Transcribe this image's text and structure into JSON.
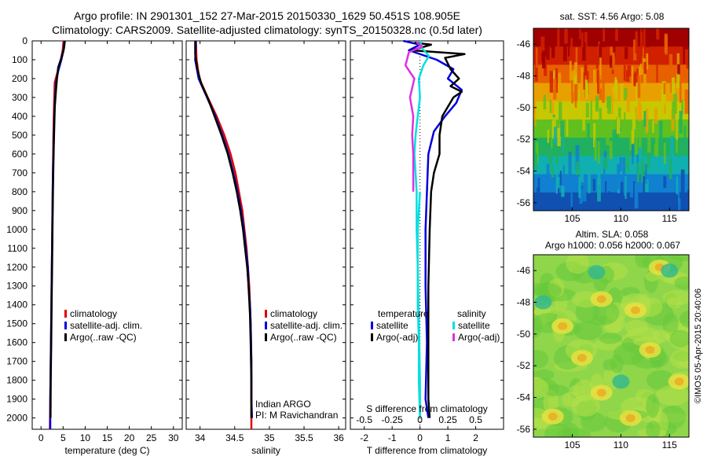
{
  "title_line1": "Argo profile: IN 2901301_152 27-Mar-2015 20150330_1629 50.451S 108.905E",
  "title_line2": "Climatology: CARS2009. Satellite-adjusted climatology: synTS_20150328.nc (0.5d later)",
  "colors": {
    "climatology": "#e00000",
    "satellite": "#0000e0",
    "argo": "#000000",
    "sat_s": "#00e0e0",
    "argo_s": "#e030e0"
  },
  "chart_data": [
    {
      "type": "line",
      "xlabel": "temperature (deg C)",
      "ylabel": "",
      "xlim": [
        -2,
        32
      ],
      "ylim": [
        2060,
        0
      ],
      "xticks": [
        0,
        5,
        10,
        15,
        20,
        25,
        30
      ],
      "yticks": [
        0,
        100,
        200,
        300,
        400,
        500,
        600,
        700,
        800,
        900,
        1000,
        1100,
        1200,
        1300,
        1400,
        1500,
        1600,
        1700,
        1800,
        1900,
        2000
      ],
      "legend": [
        "climatology",
        "satellite-adj. clim.",
        "Argo(..raw -QC)"
      ],
      "series": [
        {
          "name": "climatology",
          "color": "climatology",
          "points": [
            [
              5.1,
              0
            ],
            [
              4.9,
              50
            ],
            [
              4.5,
              100
            ],
            [
              3.8,
              160
            ],
            [
              3.1,
              220
            ],
            [
              3.0,
              300
            ],
            [
              2.9,
              400
            ],
            [
              2.8,
              500
            ],
            [
              2.75,
              600
            ],
            [
              2.7,
              700
            ],
            [
              2.6,
              900
            ],
            [
              2.5,
              1100
            ],
            [
              2.4,
              1300
            ],
            [
              2.3,
              1500
            ],
            [
              2.2,
              1700
            ],
            [
              2.1,
              1900
            ],
            [
              2.0,
              2060
            ]
          ]
        },
        {
          "name": "satellite-adj. clim.",
          "color": "satellite",
          "points": [
            [
              5.3,
              0
            ],
            [
              5.1,
              50
            ],
            [
              4.6,
              100
            ],
            [
              3.9,
              160
            ],
            [
              3.4,
              220
            ],
            [
              3.2,
              300
            ],
            [
              3.0,
              400
            ],
            [
              2.9,
              500
            ],
            [
              2.8,
              600
            ],
            [
              2.7,
              700
            ],
            [
              2.6,
              900
            ],
            [
              2.5,
              1100
            ],
            [
              2.4,
              1300
            ],
            [
              2.3,
              1500
            ],
            [
              2.2,
              1700
            ],
            [
              2.1,
              1900
            ],
            [
              2.1,
              2060
            ]
          ]
        },
        {
          "name": "Argo(..raw -QC)",
          "color": "argo",
          "points": [
            [
              5.4,
              0
            ],
            [
              5.2,
              40
            ],
            [
              4.6,
              90
            ],
            [
              3.9,
              140
            ],
            [
              3.6,
              200
            ],
            [
              3.4,
              260
            ],
            [
              3.1,
              350
            ],
            [
              3.0,
              450
            ],
            [
              2.9,
              550
            ],
            [
              2.8,
              650
            ],
            [
              2.7,
              800
            ],
            [
              2.6,
              1000
            ],
            [
              2.5,
              1200
            ],
            [
              2.4,
              1400
            ],
            [
              2.3,
              1600
            ],
            [
              2.2,
              1800
            ],
            [
              2.15,
              2000
            ]
          ]
        }
      ]
    },
    {
      "type": "line",
      "xlabel": "salinity",
      "ylabel": "",
      "xlim": [
        33.8,
        36.1
      ],
      "ylim": [
        2060,
        0
      ],
      "xticks": [
        34,
        34.5,
        35,
        35.5,
        36
      ],
      "xticklabels": [
        "34",
        "34.5",
        "35",
        "35.5",
        "36"
      ],
      "legend": [
        "climatology",
        "satellite-adj. clim.",
        "Argo(..raw -QC)"
      ],
      "annotation": [
        "Indian ARGO",
        "PI: M Ravichandran"
      ],
      "series": [
        {
          "name": "climatology",
          "color": "climatology",
          "points": [
            [
              33.94,
              0
            ],
            [
              33.95,
              100
            ],
            [
              33.99,
              200
            ],
            [
              34.11,
              300
            ],
            [
              34.24,
              400
            ],
            [
              34.35,
              500
            ],
            [
              34.44,
              600
            ],
            [
              34.51,
              700
            ],
            [
              34.56,
              800
            ],
            [
              34.61,
              900
            ],
            [
              34.64,
              1000
            ],
            [
              34.67,
              1100
            ],
            [
              34.69,
              1200
            ],
            [
              34.71,
              1300
            ],
            [
              34.72,
              1400
            ],
            [
              34.73,
              1500
            ],
            [
              34.74,
              1700
            ],
            [
              34.74,
              1900
            ],
            [
              34.74,
              2060
            ]
          ]
        },
        {
          "name": "satellite-adj. clim.",
          "color": "satellite",
          "points": [
            [
              33.94,
              0
            ],
            [
              33.93,
              100
            ],
            [
              33.98,
              200
            ],
            [
              34.1,
              300
            ],
            [
              34.22,
              400
            ],
            [
              34.32,
              500
            ],
            [
              34.41,
              600
            ],
            [
              34.48,
              700
            ],
            [
              34.54,
              800
            ],
            [
              34.59,
              900
            ],
            [
              34.63,
              1000
            ],
            [
              34.66,
              1100
            ],
            [
              34.69,
              1200
            ],
            [
              34.7,
              1300
            ],
            [
              34.72,
              1400
            ],
            [
              34.73,
              1500
            ],
            [
              34.74,
              1700
            ],
            [
              34.74,
              1900
            ],
            [
              34.75,
              2000
            ]
          ]
        },
        {
          "name": "Argo(..raw -QC)",
          "color": "argo",
          "points": [
            [
              33.93,
              0
            ],
            [
              33.93,
              70
            ],
            [
              33.96,
              150
            ],
            [
              34.02,
              230
            ],
            [
              34.12,
              310
            ],
            [
              34.21,
              400
            ],
            [
              34.31,
              500
            ],
            [
              34.4,
              600
            ],
            [
              34.47,
              700
            ],
            [
              34.53,
              800
            ],
            [
              34.58,
              900
            ],
            [
              34.62,
              1000
            ],
            [
              34.65,
              1100
            ],
            [
              34.68,
              1200
            ],
            [
              34.7,
              1300
            ],
            [
              34.72,
              1450
            ],
            [
              34.73,
              1600
            ],
            [
              34.74,
              1800
            ],
            [
              34.74,
              2000
            ]
          ]
        }
      ]
    },
    {
      "type": "line",
      "xlabel": "T difference from climatology",
      "top_label": "S difference from climatology",
      "xlim": [
        -2.5,
        3
      ],
      "ylim": [
        2060,
        0
      ],
      "xticks": [
        -2,
        -1,
        0,
        1,
        2
      ],
      "top_ticks": [
        -0.5,
        -0.25,
        0,
        0.25,
        0.5
      ],
      "legend_temperature": {
        "title": "temperature",
        "items": [
          "satellite",
          "Argo(-adj)"
        ]
      },
      "legend_salinity": {
        "title": "salinity",
        "items": [
          "satellite",
          "Argo(-adj)"
        ]
      },
      "series": [
        {
          "name": "temperature satellite",
          "color": "satellite",
          "points": [
            [
              -0.6,
              0
            ],
            [
              0,
              20
            ],
            [
              -0.4,
              50
            ],
            [
              0.6,
              100
            ],
            [
              1.2,
              150
            ],
            [
              1.0,
              200
            ],
            [
              1.5,
              260
            ],
            [
              1.3,
              330
            ],
            [
              0.9,
              400
            ],
            [
              0.5,
              480
            ],
            [
              0.3,
              600
            ],
            [
              0.25,
              800
            ],
            [
              0.2,
              1000
            ],
            [
              0.2,
              1300
            ],
            [
              0.25,
              1600
            ],
            [
              0.2,
              1900
            ],
            [
              0.3,
              2000
            ]
          ]
        },
        {
          "name": "temperature Argo(-adj)",
          "color": "argo",
          "points": [
            [
              -0.2,
              10
            ],
            [
              0.4,
              20
            ],
            [
              -0.3,
              50
            ],
            [
              1.6,
              70
            ],
            [
              0.9,
              90
            ],
            [
              1.1,
              150
            ],
            [
              1.4,
              200
            ],
            [
              1.1,
              240
            ],
            [
              1.5,
              270
            ],
            [
              1.2,
              300
            ],
            [
              0.8,
              400
            ],
            [
              0.7,
              500
            ],
            [
              0.7,
              600
            ],
            [
              0.5,
              700
            ],
            [
              0.4,
              800
            ],
            [
              0.35,
              1000
            ],
            [
              0.3,
              1300
            ],
            [
              0.3,
              1600
            ],
            [
              0.3,
              1900
            ],
            [
              0.35,
              2000
            ]
          ]
        },
        {
          "name": "salinity satellite",
          "color": "sat_s",
          "points": [
            [
              0.0,
              0
            ],
            [
              0.02,
              40
            ],
            [
              0.08,
              80
            ],
            [
              0.03,
              130
            ],
            [
              -0.01,
              200
            ],
            [
              0.0,
              300
            ],
            [
              -0.02,
              400
            ],
            [
              -0.04,
              500
            ],
            [
              -0.05,
              600
            ],
            [
              -0.04,
              700
            ],
            [
              -0.03,
              800
            ],
            [
              -0.03,
              1000
            ],
            [
              -0.02,
              1200
            ],
            [
              -0.02,
              1400
            ],
            [
              -0.01,
              1600
            ],
            [
              -0.01,
              1800
            ],
            [
              0.0,
              2000
            ]
          ]
        },
        {
          "name": "salinity Argo(-adj)",
          "color": "argo_s",
          "points": [
            [
              -0.03,
              10
            ],
            [
              0.02,
              30
            ],
            [
              -0.1,
              60
            ],
            [
              -0.13,
              130
            ],
            [
              -0.05,
              200
            ],
            [
              -0.09,
              300
            ],
            [
              -0.06,
              400
            ],
            [
              -0.07,
              500
            ],
            [
              -0.06,
              600
            ],
            [
              -0.06,
              800
            ]
          ]
        },
        {
          "name": "salinity raw",
          "color": "sat_s",
          "points": [
            [
              0.0,
              800
            ],
            [
              -0.02,
              1000
            ],
            [
              -0.02,
              1200
            ],
            [
              -0.01,
              1500
            ],
            [
              0.0,
              1800
            ],
            [
              0.0,
              2000
            ]
          ]
        }
      ]
    },
    {
      "type": "heatmap",
      "title": "sat. SST: 4.56 Argo: 5.08",
      "xticks": [
        105,
        110,
        115
      ],
      "yticks": [
        -46,
        -48,
        -50,
        -52,
        -54,
        -56
      ],
      "xlim": [
        101,
        117
      ],
      "ylim": [
        -56.5,
        -45
      ],
      "colors_top_to_bottom": [
        "#a00000",
        "#d02000",
        "#e86000",
        "#e8a000",
        "#c8c800",
        "#60c020",
        "#20b060",
        "#10b0b0",
        "#1080d0",
        "#1050b0"
      ],
      "float_marker": [
        108.9,
        -50.45
      ]
    },
    {
      "type": "heatmap",
      "title_line1": "Altim. SLA: 0.058",
      "title_line2": "Argo h1000: 0.056 h2000: 0.067",
      "xticks": [
        105,
        110,
        115
      ],
      "yticks": [
        -46,
        -48,
        -50,
        -52,
        -54,
        -56
      ],
      "xlim": [
        101,
        117
      ],
      "ylim": [
        -56.5,
        -45
      ],
      "side_label": "©IMOS 05-Apr-2015 20:40:06",
      "blobs_yellow": [
        [
          108,
          -47.8
        ],
        [
          104,
          -49.5
        ],
        [
          111.5,
          -48.5
        ],
        [
          113,
          -51
        ],
        [
          106,
          -51.5
        ],
        [
          108,
          -53.7
        ],
        [
          103,
          -55.2
        ],
        [
          111,
          -55.3
        ],
        [
          114,
          -45.8
        ],
        [
          116,
          -53
        ]
      ],
      "blobs_cyan": [
        [
          107.5,
          -46.1
        ],
        [
          110,
          -53
        ],
        [
          115,
          -46
        ],
        [
          102,
          -48
        ]
      ]
    }
  ]
}
